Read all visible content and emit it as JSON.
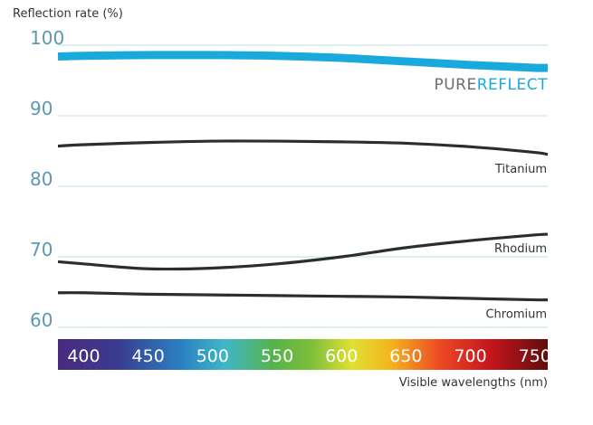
{
  "chart_data": {
    "type": "line",
    "ylabel": "Reflection rate (%)",
    "xlabel": "Visible wavelengths (nm)",
    "ylim": [
      60,
      100
    ],
    "yticks": [
      100,
      90,
      80,
      70,
      60
    ],
    "xlim": [
      380,
      760
    ],
    "grid": true,
    "x_band_labels": [
      "400",
      "450",
      "500",
      "550",
      "600",
      "650",
      "700",
      "750"
    ],
    "x": [
      380,
      400,
      450,
      500,
      550,
      600,
      650,
      700,
      750,
      760
    ],
    "series": [
      {
        "name": "PUREREFLECT",
        "name_parts": [
          "PURE",
          "REFLECT"
        ],
        "color": "#1aa9dc",
        "values": [
          98.4,
          98.5,
          98.6,
          98.6,
          98.5,
          98.2,
          97.7,
          97.2,
          96.8,
          96.8
        ]
      },
      {
        "name": "Titanium",
        "color": "#2b2d2f",
        "values": [
          85.7,
          85.9,
          86.2,
          86.4,
          86.4,
          86.3,
          86.1,
          85.6,
          84.8,
          84.5
        ]
      },
      {
        "name": "Rhodium",
        "color": "#2b2d2f",
        "values": [
          69.3,
          69.0,
          68.3,
          68.4,
          69.0,
          70.0,
          71.3,
          72.3,
          73.1,
          73.2
        ]
      },
      {
        "name": "Chromium",
        "color": "#2b2d2f",
        "values": [
          64.9,
          64.9,
          64.7,
          64.6,
          64.5,
          64.4,
          64.3,
          64.1,
          63.9,
          63.9
        ]
      }
    ],
    "colors": {
      "axis_text": "#5d98b3",
      "grid": "#bfe0ea",
      "brand_pure": "#6b6e72",
      "brand_reflect": "#1aa9dc"
    }
  }
}
